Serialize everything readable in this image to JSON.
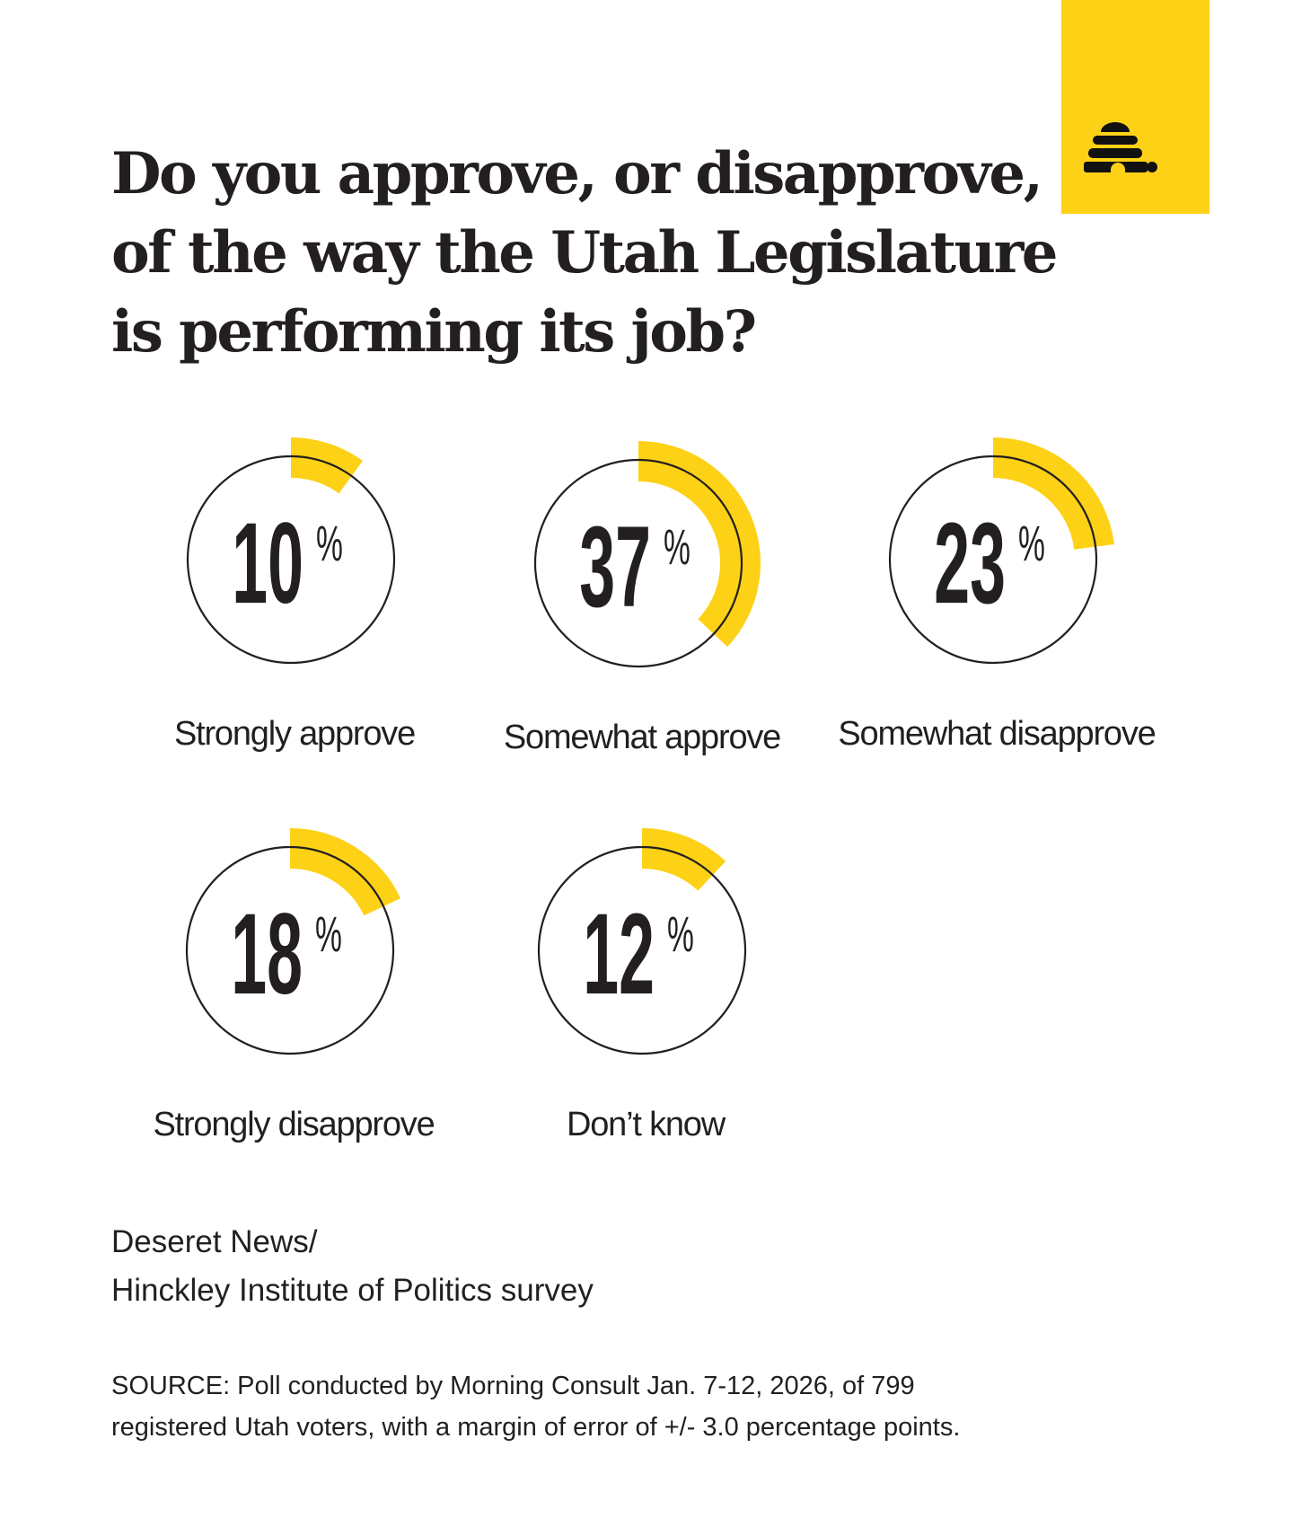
{
  "logo": {
    "name": "beehive-logo",
    "background": "#fdd116"
  },
  "chart_data": {
    "type": "radial-progress",
    "title": "Do you approve, or disapprove, of the way the Utah Legislature is performing its job?",
    "unit": "%",
    "items": [
      {
        "label": "Strongly approve",
        "value": 10
      },
      {
        "label": "Somewhat approve",
        "value": 37
      },
      {
        "label": "Somewhat disapprove",
        "value": 23
      },
      {
        "label": "Strongly disapprove",
        "value": 18
      },
      {
        "label": "Don’t know",
        "value": 12
      }
    ],
    "accent_color": "#fdd116",
    "ring_color": "#231f20"
  },
  "credit": {
    "line1": "Deseret News/",
    "line2": "Hinckley Institute of Politics survey"
  },
  "source": {
    "line1": "SOURCE: Poll conducted by Morning Consult Jan. 7-12, 2026, of 799",
    "line2": "registered Utah voters, with a margin of error of +/- 3.0 percentage points."
  }
}
